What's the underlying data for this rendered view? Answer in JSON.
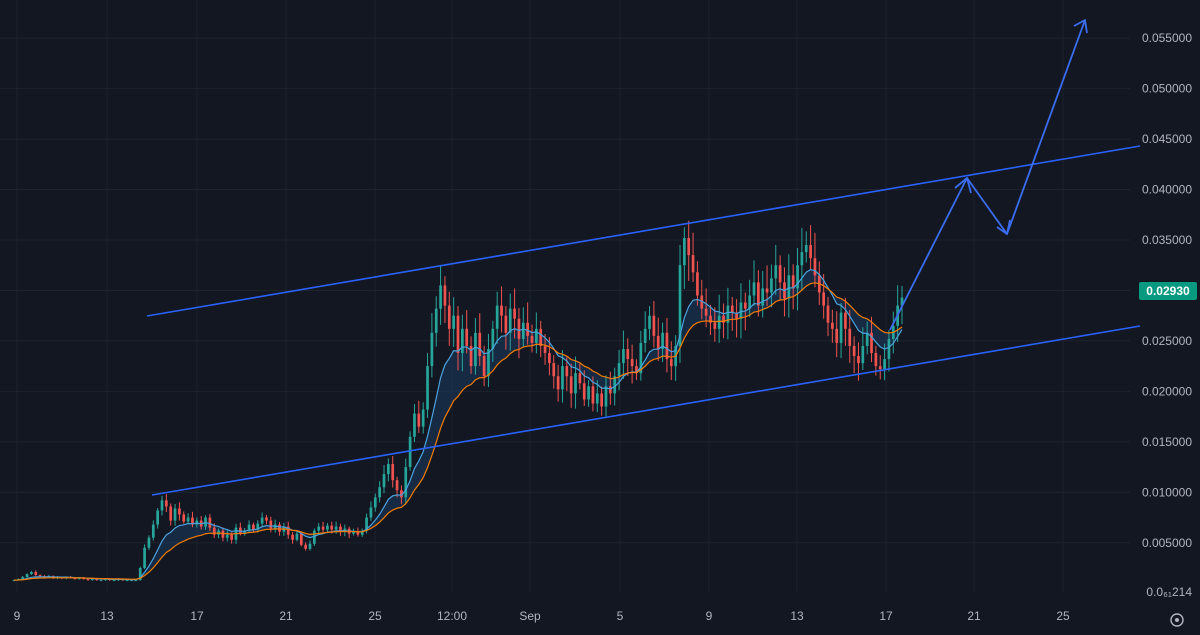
{
  "colors": {
    "background": "#131722",
    "grid": "#1e222d",
    "up": "#26a69a",
    "down": "#ef5350",
    "ma_fast": "#4aa3df",
    "ma_slow": "#f57c00",
    "band_fill": "#1c3a5e",
    "channel": "#2962ff",
    "projection": "#3a6df0",
    "price_tag": "#089981"
  },
  "chart_data": {
    "type": "line",
    "x_axis_ticks": [
      "9",
      "13",
      "17",
      "21",
      "25",
      "12:00",
      "Sep",
      "5",
      "9",
      "13",
      "17",
      "21",
      "25"
    ],
    "y_axis_ticks": [
      "0.055000",
      "0.050000",
      "0.045000",
      "0.040000",
      "0.035000",
      "0.030000",
      "0.025000",
      "0.020000",
      "0.015000",
      "0.010000",
      "0.005000"
    ],
    "y_axis_bottom_label": "0.0₆₁214",
    "ylim": [
      0.0001214,
      0.0565
    ],
    "current_price": "0.02930",
    "candle_type": "candlestick",
    "candles_close": [
      0.0013,
      0.0014,
      0.0016,
      0.0019,
      0.0021,
      0.0018,
      0.0017,
      0.0016,
      0.0017,
      0.0015,
      0.0016,
      0.0015,
      0.0016,
      0.0015,
      0.0014,
      0.0015,
      0.0014,
      0.0013,
      0.0014,
      0.0013,
      0.0013,
      0.0014,
      0.0013,
      0.0013,
      0.0014,
      0.0013,
      0.0013,
      0.0013,
      0.0013,
      0.0025,
      0.0045,
      0.0055,
      0.0068,
      0.0082,
      0.0092,
      0.0086,
      0.0072,
      0.0084,
      0.0078,
      0.0071,
      0.0075,
      0.0068,
      0.0072,
      0.0066,
      0.0075,
      0.0065,
      0.0058,
      0.0062,
      0.0055,
      0.0058,
      0.0053,
      0.0065,
      0.0059,
      0.0062,
      0.0068,
      0.0063,
      0.0069,
      0.0075,
      0.0072,
      0.0064,
      0.0068,
      0.0061,
      0.0066,
      0.0058,
      0.0053,
      0.0059,
      0.0048,
      0.0044,
      0.0049,
      0.0062,
      0.0066,
      0.0063,
      0.0067,
      0.0063,
      0.0066,
      0.0061,
      0.0064,
      0.0059,
      0.0061,
      0.0058,
      0.0062,
      0.0075,
      0.0085,
      0.0095,
      0.0105,
      0.0118,
      0.0128,
      0.0112,
      0.0102,
      0.0095,
      0.0125,
      0.0155,
      0.0178,
      0.0165,
      0.0182,
      0.0225,
      0.0258,
      0.0282,
      0.0305,
      0.0285,
      0.0262,
      0.0275,
      0.0238,
      0.0262,
      0.0245,
      0.0225,
      0.0258,
      0.0235,
      0.0215,
      0.0242,
      0.0262,
      0.0285,
      0.0275,
      0.0258,
      0.0282,
      0.0272,
      0.0252,
      0.0268,
      0.0255,
      0.0248,
      0.0262,
      0.0245,
      0.0238,
      0.0228,
      0.0215,
      0.0202,
      0.0225,
      0.0215,
      0.0198,
      0.0218,
      0.0208,
      0.0192,
      0.0205,
      0.0188,
      0.0198,
      0.0185,
      0.0205,
      0.0198,
      0.0215,
      0.0228,
      0.0242,
      0.0232,
      0.0225,
      0.0218,
      0.0248,
      0.0262,
      0.0275,
      0.0255,
      0.0242,
      0.0258,
      0.0232,
      0.0225,
      0.0245,
      0.0325,
      0.0352,
      0.0335,
      0.0318,
      0.0295,
      0.0282,
      0.0275,
      0.0268,
      0.0262,
      0.0275,
      0.0268,
      0.0285,
      0.0278,
      0.0272,
      0.0288,
      0.0282,
      0.0295,
      0.0308,
      0.0285,
      0.0302,
      0.0298,
      0.0312,
      0.0325,
      0.0308,
      0.0292,
      0.0315,
      0.0302,
      0.0325,
      0.0338,
      0.0345,
      0.0332,
      0.0315,
      0.0298,
      0.0285,
      0.0268,
      0.0262,
      0.0248,
      0.0278,
      0.0262,
      0.0245,
      0.0235,
      0.0228,
      0.0245,
      0.0258,
      0.0238,
      0.0225,
      0.0222,
      0.0232,
      0.0252,
      0.0265,
      0.0285,
      0.0293
    ]
  }
}
